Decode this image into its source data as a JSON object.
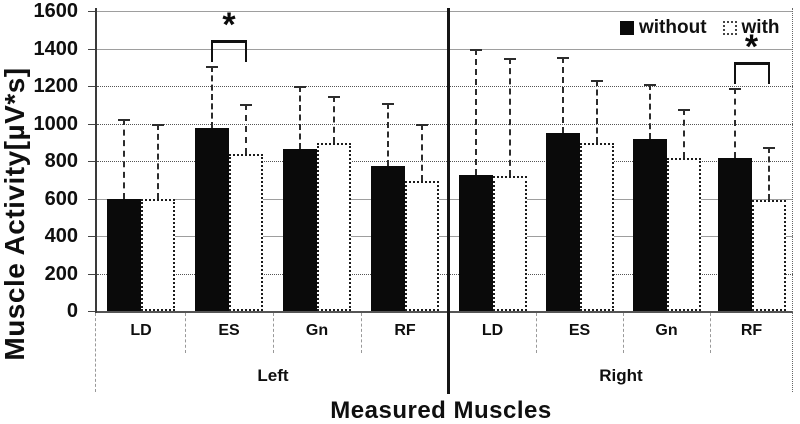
{
  "chart_data": {
    "type": "bar",
    "title": "",
    "ylabel": "Muscle Activity[µV*s]",
    "xlabel": "Measured Muscles",
    "ylim": [
      0,
      1600
    ],
    "yticks": [
      0,
      200,
      400,
      600,
      800,
      1000,
      1200,
      1400,
      1600
    ],
    "grid": true,
    "legend_position": "top-right",
    "group_axis": {
      "halves": [
        "Left",
        "Right"
      ],
      "muscles": [
        "LD",
        "ES",
        "Gn",
        "RF"
      ]
    },
    "categories": [
      "Left LD",
      "Left ES",
      "Left Gn",
      "Left RF",
      "Right LD",
      "Right ES",
      "Right Gn",
      "Right RF"
    ],
    "series": [
      {
        "name": "without",
        "fill": "#0a0a0a",
        "values": [
          595,
          975,
          865,
          775,
          725,
          950,
          920,
          815
        ],
        "error_plus": [
          430,
          330,
          335,
          335,
          670,
          405,
          290,
          375
        ]
      },
      {
        "name": "with",
        "fill": "#ffffff",
        "values": [
          600,
          840,
          895,
          695,
          720,
          895,
          815,
          590
        ],
        "error_plus": [
          400,
          265,
          250,
          305,
          630,
          335,
          265,
          285
        ]
      }
    ],
    "significance": [
      {
        "category": "Left ES",
        "marker": "*"
      },
      {
        "category": "Right RF",
        "marker": "*"
      }
    ]
  },
  "colors": {
    "bar_without": "#0a0a0a",
    "bar_with": "#ffffff",
    "axis": "#444444",
    "gridline": "#777777"
  }
}
